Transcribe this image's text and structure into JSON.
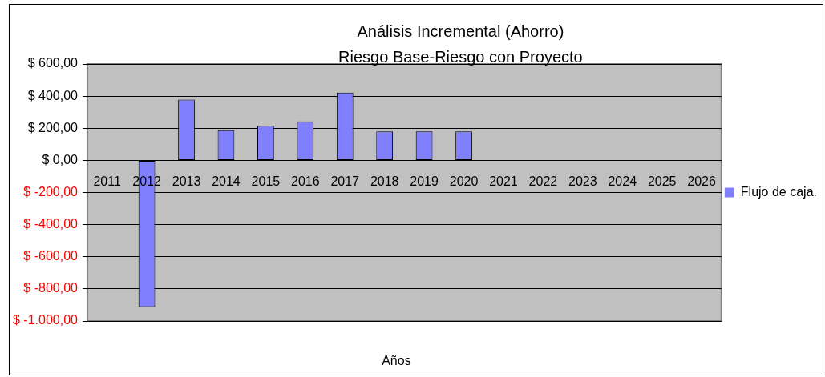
{
  "chart_data": {
    "type": "bar",
    "title": "Análisis Incremental (Ahorro)",
    "subtitle": "Riesgo Base-Riesgo con Proyecto",
    "xlabel": "Años",
    "categories": [
      "2011",
      "2012",
      "2013",
      "2014",
      "2015",
      "2016",
      "2017",
      "2018",
      "2019",
      "2020",
      "2021",
      "2022",
      "2023",
      "2024",
      "2025",
      "2026"
    ],
    "series": [
      {
        "name": "Flujo de caja.",
        "color": "#8080ff",
        "values": [
          null,
          -913,
          378,
          187,
          215,
          242,
          422,
          180,
          180,
          180,
          null,
          null,
          null,
          null,
          null,
          null
        ]
      }
    ],
    "ylim": [
      -1000,
      600
    ],
    "yticks": [
      {
        "value": -1000,
        "label": "$ -1.000,00"
      },
      {
        "value": -800,
        "label": "$ -800,00"
      },
      {
        "value": -600,
        "label": "$ -600,00"
      },
      {
        "value": -400,
        "label": "$ -400,00"
      },
      {
        "value": -200,
        "label": "$ -200,00"
      },
      {
        "value": 0,
        "label": "$ 0,00"
      },
      {
        "value": 200,
        "label": "$ 200,00"
      },
      {
        "value": 400,
        "label": "$ 400,00"
      },
      {
        "value": 600,
        "label": "$ 600,00"
      }
    ],
    "grid": "y",
    "legend": "right"
  }
}
